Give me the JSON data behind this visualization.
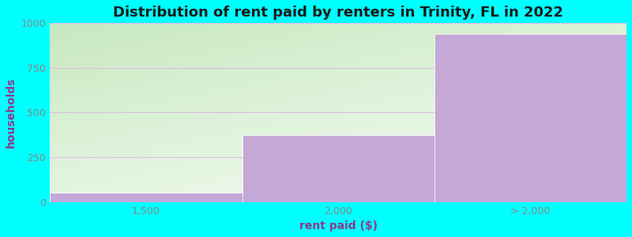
{
  "title": "Distribution of rent paid by renters in Trinity, FL in 2022",
  "xlabel": "rent paid ($)",
  "ylabel": "households",
  "categories": [
    "1,500",
    "2,000",
    "> 2,000"
  ],
  "values": [
    50,
    375,
    940
  ],
  "bar_color": "#c4a8d8",
  "bar_edgecolor": "#ffffff",
  "ylim": [
    0,
    1000
  ],
  "yticks": [
    0,
    250,
    500,
    750,
    1000
  ],
  "background_outer": "#00ffff",
  "grad_color_top_left": "#c8e8c0",
  "grad_color_bottom_right": "#f8fff8",
  "grid_color": "#ddb8e8",
  "title_color": "#1a1a1a",
  "axis_label_color": "#8b3a8b",
  "tick_label_color": "#888888",
  "title_fontsize": 13,
  "label_fontsize": 10,
  "tick_fontsize": 9,
  "bar_edges": [
    0,
    1,
    2,
    3
  ],
  "xtick_positions": [
    0.5,
    1.5,
    2.5
  ],
  "xlim": [
    0,
    3
  ]
}
